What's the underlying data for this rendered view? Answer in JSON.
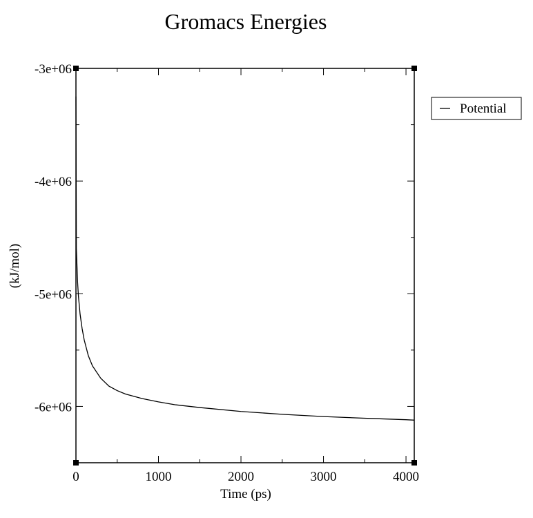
{
  "chart_data": {
    "type": "line",
    "title": "Gromacs Energies",
    "xlabel": "Time (ps)",
    "ylabel": "(kJ/mol)",
    "xlim": [
      0,
      4100
    ],
    "ylim": [
      -6500000,
      -3000000
    ],
    "x_ticks": [
      0,
      1000,
      2000,
      3000,
      4000
    ],
    "x_tick_labels": [
      "0",
      "1000",
      "2000",
      "3000",
      "4000"
    ],
    "y_ticks": [
      -3000000,
      -4000000,
      -5000000,
      -6000000
    ],
    "y_tick_labels": [
      "-3e+06",
      "-4e+06",
      "-5e+06",
      "-6e+06"
    ],
    "grid": false,
    "legend_position": "right",
    "colors": {
      "line": "#000000",
      "frame": "#000000",
      "background": "#ffffff"
    },
    "series": [
      {
        "name": "Potential",
        "x": [
          0,
          5,
          10,
          20,
          30,
          50,
          75,
          100,
          150,
          200,
          300,
          400,
          500,
          600,
          700,
          800,
          1000,
          1200,
          1500,
          2000,
          2500,
          3000,
          3500,
          4000,
          4100
        ],
        "y": [
          -3250000,
          -4600000,
          -4700000,
          -4900000,
          -5020000,
          -5180000,
          -5310000,
          -5410000,
          -5550000,
          -5640000,
          -5750000,
          -5820000,
          -5860000,
          -5890000,
          -5910000,
          -5930000,
          -5960000,
          -5985000,
          -6010000,
          -6045000,
          -6070000,
          -6090000,
          -6105000,
          -6118000,
          -6122000
        ]
      }
    ]
  }
}
